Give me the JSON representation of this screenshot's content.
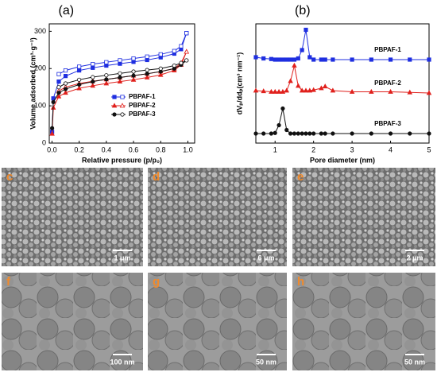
{
  "chart_data": [
    {
      "type": "line",
      "label": "(a)",
      "xlabel": "Relative pressure (p/p₀)",
      "ylabel": "Volume adsorbed (cm³·g⁻¹)",
      "xlim": [
        -0.02,
        1.05
      ],
      "ylim": [
        0,
        320
      ],
      "xticks": [
        {
          "value": 0,
          "label": "0.0"
        },
        {
          "value": 0.2,
          "label": "0.2"
        },
        {
          "value": 0.4,
          "label": "0.4"
        },
        {
          "value": 0.6,
          "label": "0.6"
        },
        {
          "value": 0.8,
          "label": "0.8"
        },
        {
          "value": 1,
          "label": "1.0"
        }
      ],
      "yticks": [
        0,
        100,
        200,
        300
      ],
      "legend": "lower right",
      "x": [
        0.001,
        0.01,
        0.05,
        0.1,
        0.2,
        0.3,
        0.4,
        0.5,
        0.6,
        0.7,
        0.8,
        0.9,
        0.95,
        0.99
      ],
      "series": [
        {
          "name": "PBPAF-1",
          "color": "#1f2fe0",
          "marker": "square",
          "values": [
            30,
            120,
            165,
            180,
            195,
            202,
            208,
            213,
            218,
            223,
            230,
            240,
            252,
            295
          ],
          "desorption": [
            null,
            null,
            185,
            195,
            205,
            212,
            217,
            222,
            227,
            232,
            238,
            247,
            260,
            295
          ]
        },
        {
          "name": "PBPAF-2",
          "color": "#e0201c",
          "marker": "triangle",
          "values": [
            25,
            95,
            125,
            135,
            147,
            154,
            160,
            165,
            170,
            176,
            183,
            195,
            210,
            245
          ],
          "desorption": [
            null,
            null,
            140,
            150,
            160,
            166,
            171,
            176,
            181,
            186,
            192,
            200,
            215,
            245
          ]
        },
        {
          "name": "PBPAF-3",
          "color": "#111111",
          "marker": "circle",
          "values": [
            40,
            110,
            135,
            145,
            157,
            165,
            171,
            176,
            181,
            186,
            192,
            200,
            210,
            222
          ],
          "desorption": [
            null,
            null,
            150,
            160,
            170,
            177,
            182,
            187,
            192,
            196,
            200,
            208,
            215,
            222
          ]
        }
      ]
    },
    {
      "type": "line",
      "label": "(b)",
      "xlabel": "Pore diameter (nm)",
      "ylabel": "dVₚ/ddₚ(cm³ nm⁻¹)",
      "xlim": [
        0.5,
        5
      ],
      "ylim": [
        0,
        10
      ],
      "xticks": [
        1,
        2,
        3,
        4,
        5
      ],
      "legend": "inline",
      "x": [
        0.5,
        0.7,
        0.9,
        1.0,
        1.1,
        1.2,
        1.3,
        1.4,
        1.5,
        1.6,
        1.7,
        1.8,
        1.9,
        2.0,
        2.2,
        2.3,
        2.5,
        3,
        3.5,
        4,
        4.5,
        5
      ],
      "series": [
        {
          "name": "PBPAF-1",
          "color": "#1f2fe0",
          "marker": "square",
          "values": [
            7.2,
            7.1,
            7.05,
            7.0,
            7.0,
            7.0,
            7.0,
            7.0,
            7.0,
            7.1,
            7.8,
            9.5,
            7.2,
            7.0,
            7.0,
            7.0,
            7.0,
            7.0,
            7.0,
            7.0,
            7.0,
            7.0
          ]
        },
        {
          "name": "PBPAF-2",
          "color": "#e0201c",
          "marker": "triangle",
          "values": [
            4.4,
            4.35,
            4.3,
            4.3,
            4.3,
            4.3,
            4.4,
            5.2,
            6.5,
            4.8,
            4.4,
            4.4,
            4.4,
            4.45,
            4.6,
            4.75,
            4.4,
            4.3,
            4.3,
            4.3,
            4.25,
            4.2
          ]
        },
        {
          "name": "PBPAF-3",
          "color": "#111111",
          "marker": "circle",
          "values": [
            0.8,
            0.8,
            0.8,
            0.85,
            1.5,
            2.9,
            1.1,
            0.8,
            0.8,
            0.8,
            0.8,
            0.8,
            0.8,
            0.8,
            0.8,
            0.8,
            0.8,
            0.8,
            0.8,
            0.8,
            0.8,
            0.8
          ]
        }
      ]
    }
  ],
  "panels": [
    {
      "label": "c",
      "scale": "1 μm"
    },
    {
      "label": "d",
      "scale": "6 μm"
    },
    {
      "label": "e",
      "scale": "2 μm"
    },
    {
      "label": "f",
      "scale": "100 nm"
    },
    {
      "label": "g",
      "scale": "50 nm"
    },
    {
      "label": "h",
      "scale": "50 nm"
    }
  ]
}
